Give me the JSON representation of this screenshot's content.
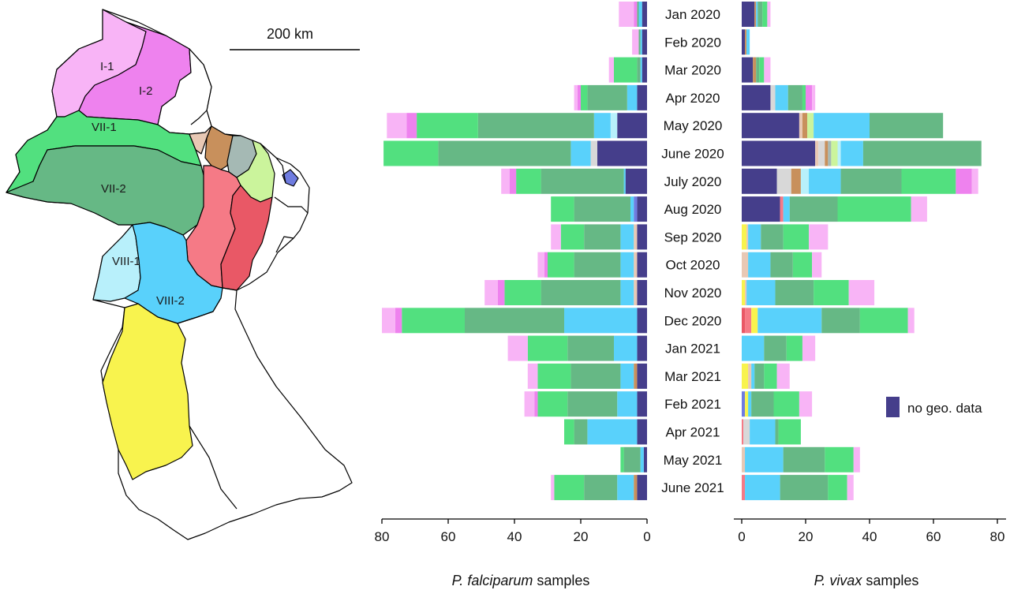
{
  "colors": {
    "no_geo": "#453e8b",
    "VIII-2": "#59d1fb",
    "VIII-1": "#b8f0fb",
    "VII-2": "#66b885",
    "VII-1": "#52e07f",
    "I-2": "#ee82ee",
    "I-1": "#f8b4f6",
    "IX": "#f57a86",
    "X": "#e95866",
    "IV": "#c8905c",
    "III": "#a5b9b4",
    "V": "#cbf49c",
    "VI": "#6f7ce0",
    "II": "#e8c8b4",
    "lightgray": "#d8d8d8",
    "yellow": "#f8f34e",
    "map_stroke": "#000000"
  },
  "map": {
    "scale_label": "200 km",
    "region_labels": [
      "I-1",
      "I-2",
      "VII-1",
      "VII-2",
      "VIII-1",
      "VIII-2"
    ]
  },
  "legend": {
    "label": "no geo. data"
  },
  "chart_data": {
    "type": "bar",
    "orientation": "horizontal",
    "stacked": true,
    "categories": [
      "Jan 2020",
      "Feb 2020",
      "Mar 2020",
      "Apr 2020",
      "May 2020",
      "June 2020",
      "July 2020",
      "Aug  2020",
      "Sep 2020",
      "Oct 2020",
      "Nov 2020",
      "Dec 2020",
      "Jan 2021",
      "Mar 2021",
      "Feb 2021",
      "Apr 2021",
      "May 2021",
      "June 2021"
    ],
    "stack_order": [
      "no_geo",
      "VI",
      "X",
      "IX",
      "yellow",
      "II",
      "lightgray",
      "IV",
      "III",
      "V",
      "VIII-1",
      "VIII-2",
      "VII-2",
      "VII-1",
      "I-2",
      "I-1"
    ],
    "panels": [
      {
        "name": "falciparum",
        "xlabel_italic": "P. falciparum",
        "xlabel_rest": " samples",
        "xlim": [
          0,
          85
        ],
        "ticks": [
          80,
          60,
          40,
          20,
          0
        ],
        "reversed": true,
        "rows": [
          {
            "no_geo": 1.5,
            "VIII-2": 1,
            "VII-2": 0.5,
            "I-2": 1,
            "I-1": 4.5
          },
          {
            "no_geo": 1.5,
            "VIII-2": 0.5,
            "VII-2": 0.5,
            "I-1": 2
          },
          {
            "no_geo": 1.5,
            "VIII-2": 0.5,
            "VII-2": 1,
            "VII-1": 7,
            "I-1": 1.5
          },
          {
            "no_geo": 3,
            "VIII-2": 3,
            "VII-2": 12,
            "VII-1": 2,
            "I-2": 1,
            "I-1": 1
          },
          {
            "no_geo": 9,
            "VIII-2": 5,
            "VIII-1": 2,
            "VII-2": 35,
            "VII-1": 18.5,
            "I-2": 3,
            "I-1": 6
          },
          {
            "no_geo": 15,
            "lightgray": 2,
            "VIII-2": 6,
            "VII-2": 40,
            "VII-1": 16.5
          },
          {
            "no_geo": 6.5,
            "VIII-2": 0.5,
            "VII-2": 25,
            "VII-1": 7.5,
            "I-2": 2,
            "I-1": 2.5
          },
          {
            "no_geo": 3,
            "VI": 1,
            "VIII-2": 1,
            "VII-2": 17,
            "VII-1": 7
          },
          {
            "no_geo": 3,
            "II": 1,
            "VIII-2": 4,
            "VII-2": 11,
            "VII-1": 7,
            "I-1": 3
          },
          {
            "no_geo": 3,
            "II": 1,
            "VIII-2": 4,
            "VII-2": 14,
            "VII-1": 8,
            "I-2": 1,
            "I-1": 2
          },
          {
            "no_geo": 3,
            "II": 1,
            "VIII-2": 4,
            "VII-2": 24,
            "VII-1": 11,
            "I-2": 2,
            "I-1": 4
          },
          {
            "no_geo": 3,
            "VIII-2": 22,
            "VII-2": 30,
            "VII-1": 19,
            "I-2": 2,
            "I-1": 4
          },
          {
            "no_geo": 3,
            "VIII-2": 7,
            "VII-2": 14,
            "VII-1": 12,
            "I-1": 6
          },
          {
            "no_geo": 3,
            "IV": 1,
            "VIII-2": 4,
            "VII-2": 15,
            "VII-1": 10,
            "I-1": 3
          },
          {
            "no_geo": 3,
            "VIII-2": 6,
            "VII-2": 15,
            "VII-1": 9,
            "I-2": 1,
            "I-1": 3
          },
          {
            "no_geo": 3,
            "VIII-2": 15,
            "VII-2": 4,
            "VII-1": 3
          },
          {
            "no_geo": 1,
            "VIII-2": 1,
            "VII-2": 5,
            "VII-1": 1
          },
          {
            "no_geo": 3,
            "IV": 1,
            "VIII-2": 5,
            "VII-2": 10,
            "VII-1": 9,
            "I-1": 1
          }
        ]
      },
      {
        "name": "vivax",
        "xlabel_italic": "P. vivax",
        "xlabel_rest": " samples",
        "xlim": [
          0,
          82
        ],
        "ticks": [
          0,
          20,
          40,
          60,
          80
        ],
        "reversed": false,
        "rows": [
          {
            "no_geo": 4,
            "IV": 0.5,
            "VIII-2": 0.5,
            "VII-2": 1.5,
            "VII-1": 1.5,
            "I-1": 1
          },
          {
            "no_geo": 1,
            "IV": 0.5,
            "VIII-2": 1
          },
          {
            "no_geo": 3.5,
            "IV": 1,
            "VII-2": 1,
            "VII-1": 1.5,
            "I-1": 2
          },
          {
            "no_geo": 9,
            "lightgray": 1.5,
            "VIII-2": 4,
            "VII-2": 4.5,
            "VII-1": 1,
            "I-2": 2,
            "I-1": 1
          },
          {
            "no_geo": 18,
            "V": 2,
            "II": 1,
            "IV": 1.5,
            "VIII-2": 17.5,
            "VII-2": 23
          },
          {
            "no_geo": 23,
            "II": 1,
            "lightgray": 2,
            "III": 1,
            "IV": 1,
            "V": 2,
            "VIII-2": 7,
            "VIII-1": 1,
            "VII-2": 37
          },
          {
            "no_geo": 11,
            "lightgray": 4.5,
            "IV": 3,
            "VIII-2": 10,
            "VIII-1": 2.5,
            "VII-2": 19,
            "VII-1": 17,
            "I-2": 5,
            "I-1": 2
          },
          {
            "no_geo": 12,
            "IX": 1,
            "VIII-2": 2,
            "VII-2": 15,
            "VII-1": 23,
            "I-1": 5
          },
          {
            "II": 0.5,
            "yellow": 1.5,
            "VIII-2": 4,
            "VII-2": 7,
            "VII-1": 8,
            "I-1": 6
          },
          {
            "II": 2,
            "VIII-2": 7,
            "VII-2": 7,
            "VII-1": 6,
            "I-1": 3
          },
          {
            "II": 0.5,
            "yellow": 1,
            "VIII-2": 9,
            "VII-2": 12,
            "VII-1": 11,
            "I-1": 8
          },
          {
            "IX": 2,
            "X": 1,
            "yellow": 2,
            "VIII-2": 20,
            "VII-2": 12,
            "VII-1": 15,
            "I-1": 2
          },
          {
            "VIII-2": 7,
            "VII-2": 7,
            "VII-1": 5,
            "I-1": 4
          },
          {
            "II": 1,
            "yellow": 2,
            "VIII-2": 1,
            "VII-2": 3,
            "VII-1": 4,
            "I-1": 4
          },
          {
            "VI": 1,
            "yellow": 1,
            "VIII-2": 1,
            "VII-2": 7,
            "VII-1": 8,
            "I-1": 4
          },
          {
            "lightgray": 2,
            "IX": 0.5,
            "VIII-2": 8,
            "VII-2": 1,
            "VII-1": 7
          },
          {
            "II": 1,
            "VIII-2": 12,
            "VII-2": 13,
            "VII-1": 9,
            "I-1": 2
          },
          {
            "IX": 1,
            "VIII-2": 11,
            "VII-2": 15,
            "VII-1": 6,
            "I-1": 2
          }
        ]
      }
    ]
  }
}
